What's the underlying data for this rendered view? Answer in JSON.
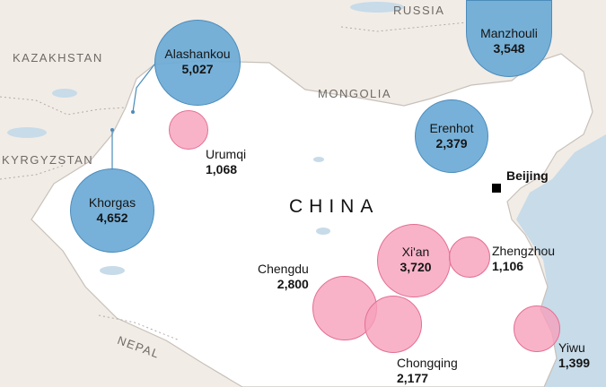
{
  "map": {
    "countries": [
      {
        "id": "russia",
        "label": "RUSSIA"
      },
      {
        "id": "kazakhstan",
        "label": "KAZAKHSTAN"
      },
      {
        "id": "mongolia",
        "label": "MONGOLIA"
      },
      {
        "id": "kyrgyzstan",
        "label": "KYRGYZSTAN"
      },
      {
        "id": "china",
        "label": "CHINA"
      },
      {
        "id": "nepal",
        "label": "NEPAL"
      }
    ],
    "capital": {
      "name": "Beijing"
    },
    "cities": [
      {
        "id": "alashankou",
        "name": "Alashankou",
        "value": "5,027",
        "type": "border crossing"
      },
      {
        "id": "manzhouli",
        "name": "Manzhouli",
        "value": "3,548",
        "type": "border crossing"
      },
      {
        "id": "erenhot",
        "name": "Erenhot",
        "value": "2,379",
        "type": "border crossing"
      },
      {
        "id": "khorgas",
        "name": "Khorgas",
        "value": "4,652",
        "type": "border crossing"
      },
      {
        "id": "urumqi",
        "name": "Urumqi",
        "value": "1,068",
        "type": "inland city"
      },
      {
        "id": "xian",
        "name": "Xi'an",
        "value": "3,720",
        "type": "inland city"
      },
      {
        "id": "zhengzhou",
        "name": "Zhengzhou",
        "value": "1,106",
        "type": "inland city"
      },
      {
        "id": "chengdu",
        "name": "Chengdu",
        "value": "2,800",
        "type": "inland city"
      },
      {
        "id": "chongqing",
        "name": "Chongqing",
        "value": "2,177",
        "type": "inland city"
      },
      {
        "id": "yiwu",
        "name": "Yiwu",
        "value": "1,399",
        "type": "inland city"
      }
    ]
  },
  "colors": {
    "border_crossing": "#6aaad6",
    "inland_city": "#f6a0bb",
    "china_land": "#ffffff",
    "other_land": "#f2ece6",
    "sea": "#c7dbe9"
  }
}
